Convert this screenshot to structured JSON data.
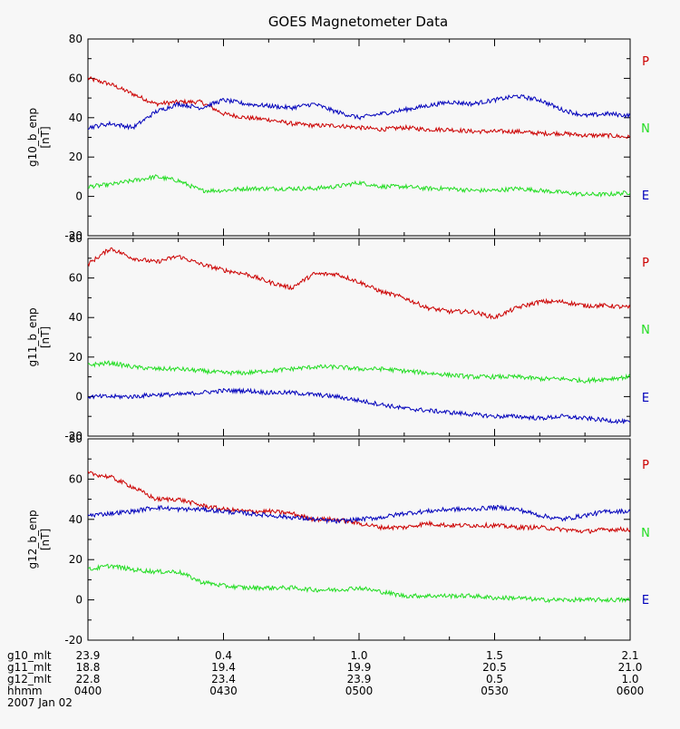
{
  "title": "GOES Magnetometer Data",
  "chart_data": [
    {
      "type": "line",
      "panel": "g10",
      "ylabel": "g10_b_enp",
      "yunits": "[nT]",
      "ylim": [
        -20,
        80
      ],
      "yticks": [
        -20,
        0,
        20,
        40,
        60,
        80
      ],
      "xlim": [
        0,
        120
      ],
      "series": [
        {
          "name": "P",
          "color": "#cc0000",
          "x": [
            0,
            5,
            10,
            15,
            20,
            25,
            30,
            35,
            40,
            45,
            50,
            55,
            60,
            65,
            70,
            75,
            80,
            85,
            90,
            95,
            100,
            105,
            110,
            115,
            120
          ],
          "values": [
            60,
            57,
            52,
            47,
            48,
            48,
            42,
            40,
            39,
            37,
            36,
            36,
            35,
            34,
            35,
            34,
            34,
            33,
            33,
            33,
            32,
            32,
            31,
            31,
            30
          ]
        },
        {
          "name": "N",
          "color": "#22dd22",
          "x": [
            0,
            5,
            10,
            15,
            20,
            25,
            30,
            35,
            40,
            45,
            50,
            55,
            60,
            65,
            70,
            75,
            80,
            85,
            90,
            95,
            100,
            105,
            110,
            115,
            120
          ],
          "values": [
            5,
            6,
            8,
            10,
            8,
            3,
            3,
            4,
            4,
            4,
            4,
            5,
            7,
            5,
            5,
            4,
            4,
            3,
            3,
            4,
            3,
            2,
            1,
            1,
            2
          ]
        },
        {
          "name": "E",
          "color": "#0000bb",
          "x": [
            0,
            5,
            10,
            15,
            20,
            25,
            30,
            35,
            40,
            45,
            50,
            55,
            60,
            65,
            70,
            75,
            80,
            85,
            90,
            95,
            100,
            105,
            110,
            115,
            120
          ],
          "values": [
            35,
            37,
            35,
            43,
            47,
            45,
            49,
            47,
            46,
            45,
            47,
            43,
            40,
            42,
            44,
            46,
            48,
            47,
            49,
            51,
            49,
            44,
            41,
            42,
            41
          ]
        }
      ]
    },
    {
      "type": "line",
      "panel": "g11",
      "ylabel": "g11_b_enp",
      "yunits": "[nT]",
      "ylim": [
        -20,
        80
      ],
      "yticks": [
        -20,
        0,
        20,
        40,
        60,
        80
      ],
      "xlim": [
        0,
        120
      ],
      "series": [
        {
          "name": "P",
          "color": "#cc0000",
          "x": [
            0,
            5,
            10,
            15,
            20,
            25,
            30,
            35,
            40,
            45,
            50,
            55,
            60,
            65,
            70,
            75,
            80,
            85,
            90,
            95,
            100,
            105,
            110,
            115,
            120
          ],
          "values": [
            67,
            75,
            70,
            68,
            71,
            67,
            64,
            62,
            58,
            55,
            62,
            62,
            58,
            53,
            50,
            45,
            43,
            43,
            40,
            45,
            48,
            48,
            46,
            46,
            45
          ]
        },
        {
          "name": "N",
          "color": "#22dd22",
          "x": [
            0,
            5,
            10,
            15,
            20,
            25,
            30,
            35,
            40,
            45,
            50,
            55,
            60,
            65,
            70,
            75,
            80,
            85,
            90,
            95,
            100,
            105,
            110,
            115,
            120
          ],
          "values": [
            16,
            17,
            15,
            14,
            14,
            13,
            12,
            12,
            13,
            14,
            15,
            15,
            14,
            14,
            13,
            12,
            11,
            10,
            10,
            10,
            9,
            9,
            8,
            9,
            10
          ]
        },
        {
          "name": "E",
          "color": "#0000bb",
          "x": [
            0,
            5,
            10,
            15,
            20,
            25,
            30,
            35,
            40,
            45,
            50,
            55,
            60,
            65,
            70,
            75,
            80,
            85,
            90,
            95,
            100,
            105,
            110,
            115,
            120
          ],
          "values": [
            0,
            0,
            0,
            1,
            1,
            2,
            3,
            3,
            2,
            2,
            1,
            0,
            -2,
            -4,
            -6,
            -7,
            -8,
            -9,
            -10,
            -10,
            -11,
            -10,
            -11,
            -12,
            -13
          ]
        }
      ]
    },
    {
      "type": "line",
      "panel": "g12",
      "ylabel": "g12_b_enp",
      "yunits": "[nT]",
      "ylim": [
        -20,
        80
      ],
      "yticks": [
        -20,
        0,
        20,
        40,
        60,
        80
      ],
      "xlim": [
        0,
        120
      ],
      "series": [
        {
          "name": "P",
          "color": "#cc0000",
          "x": [
            0,
            5,
            10,
            15,
            20,
            25,
            30,
            35,
            40,
            45,
            50,
            55,
            60,
            65,
            70,
            75,
            80,
            85,
            90,
            95,
            100,
            105,
            110,
            115,
            120
          ],
          "values": [
            63,
            61,
            56,
            50,
            50,
            47,
            45,
            44,
            44,
            43,
            40,
            40,
            38,
            36,
            36,
            38,
            37,
            37,
            37,
            36,
            36,
            35,
            34,
            35,
            35
          ]
        },
        {
          "name": "N",
          "color": "#22dd22",
          "x": [
            0,
            5,
            10,
            15,
            20,
            25,
            30,
            35,
            40,
            45,
            50,
            55,
            60,
            65,
            70,
            75,
            80,
            85,
            90,
            95,
            100,
            105,
            110,
            115,
            120
          ],
          "values": [
            15,
            17,
            15,
            14,
            14,
            9,
            7,
            6,
            6,
            6,
            5,
            5,
            6,
            4,
            2,
            2,
            2,
            2,
            1,
            1,
            0,
            0,
            0,
            0,
            0
          ]
        },
        {
          "name": "E",
          "color": "#0000bb",
          "x": [
            0,
            5,
            10,
            15,
            20,
            25,
            30,
            35,
            40,
            45,
            50,
            55,
            60,
            65,
            70,
            75,
            80,
            85,
            90,
            95,
            100,
            105,
            110,
            115,
            120
          ],
          "values": [
            42,
            43,
            44,
            46,
            45,
            45,
            44,
            43,
            42,
            41,
            40,
            39,
            40,
            41,
            43,
            44,
            45,
            45,
            46,
            45,
            42,
            40,
            42,
            44,
            44
          ]
        }
      ]
    }
  ],
  "x_axis": {
    "tick_positions": [
      0,
      30,
      60,
      90,
      120
    ],
    "rows": [
      {
        "label": "g10_mlt",
        "values": [
          "23.9",
          "0.4",
          "1.0",
          "1.5",
          "2.1"
        ]
      },
      {
        "label": "g11_mlt",
        "values": [
          "18.8",
          "19.4",
          "19.9",
          "20.5",
          "21.0"
        ]
      },
      {
        "label": "g12_mlt",
        "values": [
          "22.8",
          "23.4",
          "23.9",
          "0.5",
          "1.0"
        ]
      },
      {
        "label": "hhmm",
        "values": [
          "0400",
          "0430",
          "0500",
          "0530",
          "0600"
        ]
      }
    ],
    "date": "2007 Jan 02"
  }
}
